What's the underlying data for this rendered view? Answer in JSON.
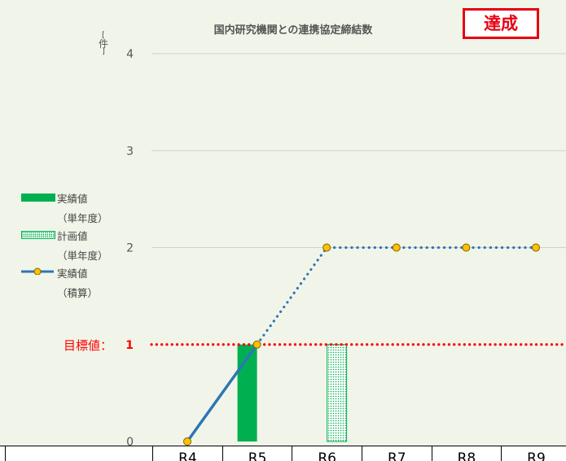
{
  "badge": "達成",
  "chart_data": {
    "type": "bar",
    "title": "国内研究機関との連携協定締結数",
    "ylabel": "件",
    "ylim": [
      0,
      4
    ],
    "yticks": [
      "0",
      "1",
      "2",
      "3",
      "4"
    ],
    "categories": [
      "R4",
      "R5",
      "R6",
      "R7",
      "R8",
      "R9"
    ],
    "series": [
      {
        "name": "実績値",
        "name_sub": "（単年度）",
        "type": "bar",
        "color": "#00b050",
        "pattern": "solid",
        "values": [
          null,
          1,
          null,
          null,
          null,
          null
        ]
      },
      {
        "name": "計画値",
        "name_sub": "（単年度）",
        "type": "bar",
        "color": "#00b050",
        "pattern": "dotted",
        "values": [
          null,
          null,
          1,
          null,
          null,
          null
        ]
      },
      {
        "name": "実績値",
        "name_sub": "（積算）",
        "type": "line",
        "color": "#2e75b6",
        "marker_color": "#ffc000",
        "values": [
          0,
          1,
          2,
          2,
          2,
          2
        ],
        "actual_until_index": 1
      }
    ],
    "target": {
      "label": "目標値：",
      "value": 1,
      "color": "#ff0000"
    },
    "grid": true,
    "legend_position": "left"
  }
}
